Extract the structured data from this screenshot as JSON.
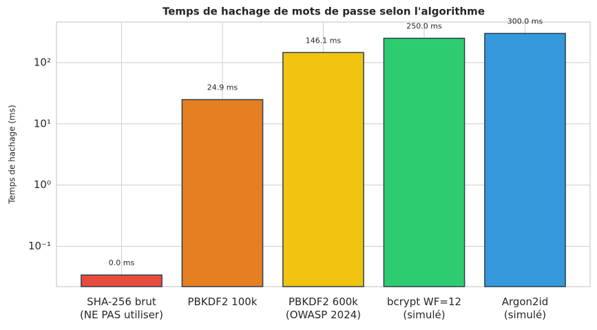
{
  "chart_data": {
    "type": "bar",
    "title": "Temps de hachage de mots de passe selon l'algorithme",
    "ylabel": "Temps de hachage (ms)",
    "categories": [
      "SHA-256 brut\n(NE PAS utiliser)",
      "PBKDF2 100k",
      "PBKDF2 600k\n(OWASP 2024)",
      "bcrypt WF=12\n(simulé)",
      "Argon2id\n(simulé)"
    ],
    "values": [
      0.034,
      24.9,
      146.1,
      250.0,
      300.0
    ],
    "value_labels": [
      "0.0 ms",
      "24.9 ms",
      "146.1 ms",
      "250.0 ms",
      "300.0 ms"
    ],
    "colors": [
      "#e74c3c",
      "#e67e22",
      "#f1c40f",
      "#2ecc71",
      "#3498db"
    ],
    "edge_color": "#2c3e50",
    "log_scale": true,
    "ylim": [
      0.022,
      460
    ],
    "yticks": [
      {
        "value": 0.1,
        "label": "10⁻¹"
      },
      {
        "value": 1,
        "label": "10⁰"
      },
      {
        "value": 10,
        "label": "10¹"
      },
      {
        "value": 100,
        "label": "10²"
      }
    ],
    "grid": true
  }
}
